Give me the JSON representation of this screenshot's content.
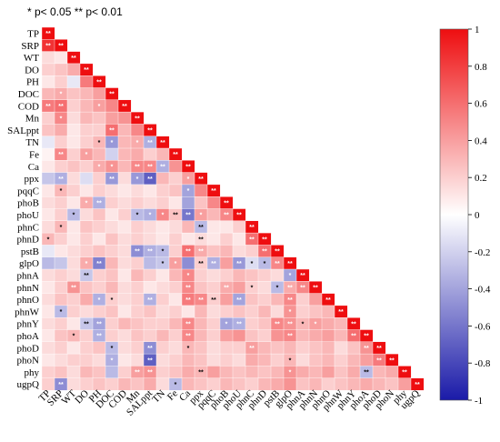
{
  "significance_note": "* p< 0.05 ** p< 0.01",
  "colors": {
    "negative": "#1a1aa8",
    "zero": "#ffffff",
    "positive": "#ee0e10",
    "star_on_light": "#000000",
    "star_on_dark": "#ffffff"
  },
  "chart_data": {
    "type": "heatmap",
    "subtype": "lower-triangle correlation matrix",
    "variables": [
      "TP",
      "SRP",
      "WT",
      "DO",
      "PH",
      "DOC",
      "COD",
      "Mn",
      "SALppt",
      "TN",
      "Fe",
      "Ca",
      "ppx",
      "pqqC",
      "phoB",
      "phoU",
      "phnC",
      "phnD",
      "pstB",
      "glpO",
      "phnA",
      "phnN",
      "phnO",
      "phnW",
      "phnY",
      "phoA",
      "phoD",
      "phoN",
      "phy",
      "ugpQ"
    ],
    "colorbar": {
      "min": -1,
      "max": 1,
      "ticks": [
        "1",
        "0.8",
        "0.6",
        "0.4",
        "0.2",
        "0",
        "-0.2",
        "-0.4",
        "-0.6",
        "-0.8",
        "-1"
      ]
    },
    "values": [
      [
        1.0
      ],
      [
        0.85,
        1.0
      ],
      [
        0.15,
        0.1,
        1.0
      ],
      [
        0.2,
        0.25,
        0.35,
        1.0
      ],
      [
        0.1,
        0.2,
        -0.1,
        0.55,
        1.0
      ],
      [
        0.3,
        0.35,
        0.25,
        0.3,
        0.4,
        1.0
      ],
      [
        0.55,
        0.6,
        0.2,
        0.3,
        0.4,
        0.5,
        1.0
      ],
      [
        0.2,
        0.5,
        0.15,
        0.3,
        0.25,
        0.4,
        0.45,
        1.0
      ],
      [
        0.25,
        0.35,
        0.1,
        0.2,
        0.2,
        0.6,
        0.3,
        0.5,
        1.0
      ],
      [
        -0.1,
        0.2,
        0.1,
        0.2,
        0.3,
        -0.45,
        0.3,
        0.35,
        -0.35,
        1.0
      ],
      [
        0.05,
        0.5,
        0.2,
        0.4,
        0.3,
        -0.2,
        0.3,
        0.35,
        0.2,
        0.3,
        1.0
      ],
      [
        0.1,
        0.2,
        0.25,
        0.2,
        0.35,
        0.45,
        0.3,
        0.5,
        0.5,
        -0.35,
        0.45,
        1.0
      ],
      [
        -0.25,
        -0.35,
        0.15,
        -0.15,
        0.2,
        -0.45,
        0.15,
        -0.45,
        -0.7,
        0.3,
        0.2,
        0.4,
        1.0
      ],
      [
        0.1,
        0.3,
        0.2,
        0.1,
        0.2,
        0.15,
        0.1,
        0.15,
        0.1,
        0.2,
        0.25,
        -0.4,
        0.5,
        1.0
      ],
      [
        0.15,
        0.2,
        0.1,
        0.35,
        -0.35,
        0.2,
        0.15,
        0.2,
        0.15,
        0.2,
        0.1,
        -0.4,
        0.25,
        0.5,
        1.0
      ],
      [
        0.1,
        0.2,
        -0.3,
        0.15,
        0.25,
        0.1,
        0.2,
        -0.3,
        -0.35,
        0.5,
        0.25,
        -0.6,
        0.4,
        0.3,
        0.5,
        1.0
      ],
      [
        0.15,
        0.3,
        0.1,
        0.25,
        0.2,
        0.15,
        0.1,
        0.2,
        0.15,
        0.1,
        0.15,
        0.3,
        -0.3,
        0.1,
        0.1,
        0.2,
        1.0
      ],
      [
        0.3,
        0.2,
        0.1,
        0.2,
        0.1,
        0.25,
        0.15,
        0.2,
        0.15,
        0.1,
        0.2,
        0.1,
        0.15,
        0.1,
        0.2,
        0.1,
        0.6,
        1.0
      ],
      [
        -0.1,
        0.1,
        0.15,
        0.2,
        0.25,
        0.2,
        0.15,
        -0.5,
        -0.35,
        -0.3,
        0.2,
        0.6,
        0.35,
        0.25,
        0.3,
        0.15,
        0.2,
        0.6,
        1.0
      ],
      [
        -0.3,
        -0.25,
        0.15,
        0.35,
        -0.55,
        0.3,
        0.15,
        0.2,
        -0.3,
        -0.25,
        0.4,
        -0.5,
        0.2,
        -0.35,
        0.4,
        -0.45,
        -0.15,
        -0.3,
        0.5,
        1.0
      ],
      [
        0.15,
        0.2,
        0.15,
        -0.25,
        0.2,
        0.25,
        0.1,
        0.3,
        0.2,
        0.1,
        0.3,
        0.5,
        0.2,
        0.15,
        0.2,
        0.3,
        0.25,
        0.2,
        0.15,
        -0.4,
        1.0
      ],
      [
        0.1,
        0.2,
        0.45,
        0.25,
        0.2,
        0.3,
        0.15,
        0.2,
        0.1,
        0.15,
        0.2,
        0.5,
        0.25,
        0.2,
        0.35,
        0.4,
        0.2,
        0.15,
        -0.3,
        0.35,
        0.5,
        1.0
      ],
      [
        0.15,
        0.25,
        0.2,
        0.35,
        -0.35,
        0.2,
        0.15,
        0.2,
        -0.35,
        0.2,
        0.1,
        0.55,
        0.5,
        0.2,
        0.4,
        -0.4,
        0.25,
        0.2,
        0.3,
        0.5,
        0.2,
        0.4,
        1.0
      ],
      [
        0.1,
        -0.3,
        0.2,
        0.15,
        0.2,
        0.25,
        0.1,
        0.2,
        0.25,
        0.15,
        0.2,
        0.1,
        0.3,
        0.15,
        0.2,
        0.25,
        0.2,
        0.3,
        0.15,
        0.45,
        0.2,
        0.25,
        0.3,
        1.0
      ],
      [
        0.15,
        0.2,
        0.1,
        -0.25,
        -0.4,
        0.2,
        0.3,
        0.25,
        0.2,
        0.2,
        0.3,
        0.5,
        0.3,
        0.2,
        -0.4,
        -0.35,
        0.2,
        0.25,
        0.5,
        0.45,
        0.3,
        0.4,
        0.35,
        0.3,
        1.0
      ],
      [
        0.1,
        0.25,
        0.3,
        0.2,
        -0.35,
        0.2,
        0.15,
        0.25,
        0.2,
        0.3,
        0.2,
        0.5,
        0.3,
        0.2,
        0.4,
        0.45,
        0.25,
        0.2,
        0.45,
        0.5,
        0.3,
        0.35,
        0.4,
        0.3,
        0.6,
        1.0
      ],
      [
        0.15,
        0.2,
        0.1,
        0.2,
        0.25,
        -0.3,
        0.15,
        0.2,
        -0.5,
        0.2,
        0.15,
        0.3,
        0.25,
        0.15,
        0.2,
        0.2,
        0.4,
        0.3,
        0.25,
        0.3,
        0.2,
        0.25,
        0.3,
        0.15,
        0.25,
        0.45,
        1.0
      ],
      [
        0.1,
        0.15,
        0.2,
        0.2,
        0.15,
        -0.35,
        0.1,
        0.15,
        -0.7,
        0.15,
        0.2,
        0.3,
        0.25,
        0.15,
        0.2,
        0.15,
        0.35,
        0.3,
        0.2,
        0.3,
        0.15,
        0.25,
        0.3,
        0.2,
        0.3,
        0.4,
        0.55,
        1.0
      ],
      [
        0.2,
        0.25,
        0.15,
        0.3,
        0.25,
        -0.3,
        0.2,
        0.4,
        0.45,
        0.2,
        0.25,
        0.35,
        0.3,
        0.4,
        0.3,
        0.25,
        0.3,
        0.25,
        0.3,
        0.45,
        0.35,
        0.3,
        0.4,
        0.25,
        0.35,
        -0.3,
        0.3,
        0.35,
        1.0
      ],
      [
        0.2,
        -0.5,
        0.15,
        0.2,
        0.25,
        0.2,
        0.3,
        0.25,
        0.35,
        0.15,
        -0.3,
        0.3,
        0.25,
        0.2,
        0.3,
        0.25,
        0.2,
        0.3,
        0.35,
        0.45,
        0.25,
        0.3,
        0.2,
        0.25,
        0.3,
        0.35,
        0.3,
        0.25,
        0.4,
        1.0
      ]
    ],
    "significance": [
      [
        "**"
      ],
      [
        "**",
        "**"
      ],
      [
        "",
        "",
        "**"
      ],
      [
        "",
        "",
        "",
        "**"
      ],
      [
        "",
        "",
        "",
        "",
        "**"
      ],
      [
        "",
        "*",
        "",
        "",
        "",
        "**"
      ],
      [
        "**",
        "**",
        "",
        "",
        "*",
        "",
        "**"
      ],
      [
        "",
        "*",
        "",
        "",
        "",
        "",
        "",
        "**"
      ],
      [
        "",
        "",
        "",
        "",
        "",
        "**",
        "",
        "",
        "**"
      ],
      [
        "",
        "",
        "",
        "",
        "*",
        "*",
        "",
        "*",
        "**",
        "**"
      ],
      [
        "",
        "**",
        "",
        "*",
        "",
        "",
        "",
        "",
        "",
        "",
        "**"
      ],
      [
        "",
        "",
        "",
        "",
        "*",
        "*",
        "",
        "**",
        "**",
        "**",
        "",
        "**"
      ],
      [
        "",
        "**",
        "",
        "",
        "",
        "**",
        "",
        "*",
        "**",
        "",
        "",
        "*",
        "**"
      ],
      [
        "",
        "*",
        "",
        "",
        "",
        "",
        "",
        "",
        "",
        "",
        "",
        "*",
        "",
        "**"
      ],
      [
        "",
        "",
        "",
        "*",
        "**",
        "",
        "",
        "",
        "",
        "",
        "",
        "",
        "",
        "",
        "**"
      ],
      [
        "",
        "",
        "*",
        "",
        "",
        "",
        "",
        "*",
        "*",
        "*",
        "**",
        "**",
        "*",
        "",
        "**",
        "**"
      ],
      [
        "",
        "*",
        "",
        "",
        "",
        "",
        "",
        "",
        "",
        "",
        "",
        "",
        "**",
        "",
        "",
        "",
        "**"
      ],
      [
        "*",
        "",
        "",
        "",
        "",
        "",
        "",
        "",
        "",
        "",
        "",
        "",
        "**",
        "",
        "",
        "",
        "**",
        "**"
      ],
      [
        "",
        "",
        "",
        "",
        "",
        "",
        "",
        "**",
        "**",
        "*",
        "",
        "**",
        "**",
        "",
        "",
        "",
        "",
        "**",
        "**"
      ],
      [
        "",
        "",
        "",
        "*",
        "**",
        "",
        "",
        "",
        "",
        "*",
        "*",
        "",
        "**",
        "**",
        "",
        "**",
        "*",
        "*",
        "**",
        "**"
      ],
      [
        "",
        "",
        "",
        "**",
        "",
        "",
        "",
        "",
        "",
        "",
        "",
        "*",
        "",
        "",
        "",
        "",
        "",
        "",
        "",
        "*",
        "**"
      ],
      [
        "",
        "",
        "**",
        "",
        "",
        "",
        "",
        "",
        "",
        "",
        "",
        "**",
        "",
        "",
        "**",
        "",
        "*",
        "",
        "*",
        "**",
        "**",
        "**"
      ],
      [
        "",
        "",
        "",
        "",
        "*",
        "*",
        "",
        "",
        "**",
        "",
        "",
        "**",
        "**",
        "**",
        "",
        "**",
        "",
        "",
        "",
        "**",
        "",
        "",
        "**"
      ],
      [
        "",
        "*",
        "",
        "",
        "",
        "",
        "",
        "",
        "",
        "",
        "",
        "",
        "",
        "",
        "",
        "",
        "",
        "",
        "",
        "*",
        "",
        "",
        "",
        "**"
      ],
      [
        "",
        "",
        "",
        "**",
        "**",
        "",
        "",
        "",
        "",
        "",
        "",
        "**",
        "",
        "",
        "*",
        "**",
        "",
        "",
        "**",
        "**",
        "*",
        "*",
        "",
        "",
        "**"
      ],
      [
        "",
        "",
        "*",
        "",
        "**",
        "",
        "",
        "",
        "",
        "",
        "",
        "**",
        "",
        "",
        "",
        "",
        "",
        "",
        "",
        "**",
        "",
        "",
        "",
        "",
        "**",
        "**"
      ],
      [
        "",
        "",
        "",
        "",
        "",
        "*",
        "",
        "",
        "**",
        "",
        "",
        "*",
        "",
        "",
        "",
        "",
        "**",
        "",
        "",
        "",
        "",
        "",
        "",
        "",
        "",
        "**",
        "**"
      ],
      [
        "",
        "",
        "",
        "",
        "",
        "*",
        "",
        "",
        "**",
        "",
        "",
        "",
        "",
        "",
        "",
        "",
        "",
        "",
        "",
        "*",
        "",
        "",
        "",
        "",
        "",
        "",
        "**",
        "**"
      ],
      [
        "",
        "",
        "",
        "",
        "",
        "",
        "",
        "**",
        "**",
        "",
        "",
        "",
        "**",
        "",
        "",
        "",
        "",
        "",
        "",
        "*",
        "",
        "",
        "",
        "",
        "",
        "**",
        "",
        "",
        "**"
      ],
      [
        "",
        "**",
        "",
        "",
        "",
        "",
        "",
        "",
        "",
        "",
        "*",
        "",
        "",
        "",
        "",
        "",
        "",
        "",
        "",
        "",
        "",
        "",
        "",
        "",
        "",
        "",
        "",
        "",
        "",
        "**"
      ]
    ]
  }
}
